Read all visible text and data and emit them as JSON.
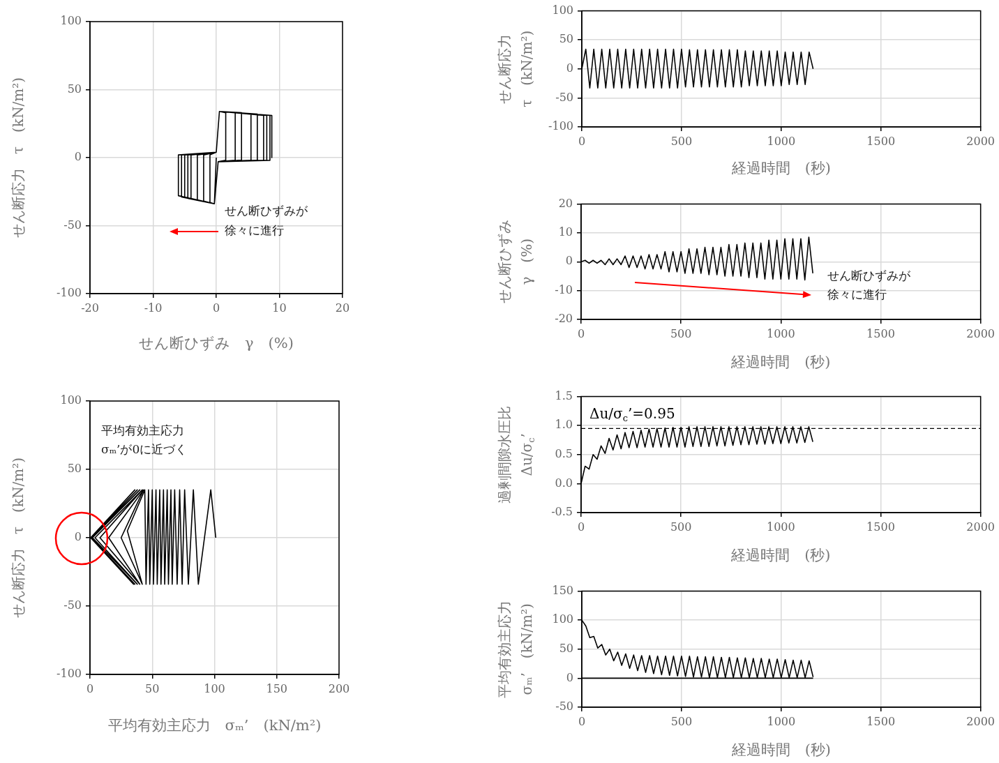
{
  "chart_data": [
    {
      "type": "line",
      "xlabel": "せん断ひずみ　γ　(%)",
      "ylabel": "せん断応力　τ　(kN/m²)",
      "xlim": [
        -20,
        20
      ],
      "ylim": [
        -100,
        100
      ],
      "xticks": [
        -20,
        -10,
        0,
        10,
        20
      ],
      "yticks": [
        -100,
        -50,
        0,
        50,
        100
      ],
      "grid": true,
      "annotations": [
        "せん断ひずみが",
        "徐々に進行"
      ],
      "series": [
        {
          "color": "#000000",
          "x": [
            0,
            -0.3,
            -1,
            -1,
            0,
            0.5,
            1.5,
            1.5,
            0.3,
            -0.3,
            -2,
            -2,
            0,
            0.5,
            3,
            3,
            0.3,
            -0.3,
            -3,
            -3,
            0,
            0.5,
            4,
            4,
            0.3,
            -0.3,
            -4,
            -4,
            0,
            0.5,
            5.5,
            5.5,
            0.3,
            -0.3,
            -4.5,
            -4.5,
            0,
            0.5,
            6.5,
            6.5,
            0.3,
            -0.3,
            -5,
            -5,
            0,
            0.5,
            7.5,
            7.5,
            0.3,
            -0.3,
            -5.5,
            -5.5,
            0,
            0.5,
            8,
            8,
            0.3,
            -0.3,
            -6,
            -6,
            0,
            0.5,
            8.5,
            8.5,
            0.3,
            -0.3,
            -6,
            -6,
            0,
            0.5,
            8.8,
            8.8
          ],
          "values": [
            0,
            -34,
            -33,
            2,
            4,
            34,
            33,
            -2,
            -3,
            -34,
            -32,
            2,
            4,
            34,
            33,
            -2,
            -3,
            -34,
            -31,
            2,
            4,
            34,
            33,
            -2,
            -3,
            -34,
            -30,
            2,
            4,
            34,
            32,
            -2,
            -3,
            -34,
            -30,
            2,
            4,
            34,
            32,
            -2,
            -3,
            -34,
            -29,
            2,
            4,
            34,
            31,
            -2,
            -3,
            -34,
            -29,
            2,
            4,
            34,
            31,
            -2,
            -3,
            -34,
            -28,
            2,
            4,
            34,
            31,
            -2,
            -3,
            -34,
            -28,
            2,
            4,
            34,
            31,
            0
          ]
        }
      ]
    },
    {
      "type": "line",
      "xlabel": "経過時間　(秒)",
      "ylabel": "せん断応力\nτ　(kN/m²)",
      "xlim": [
        0,
        2000
      ],
      "ylim": [
        -100,
        100
      ],
      "xticks": [
        0,
        500,
        1000,
        1500,
        2000
      ],
      "yticks": [
        -100,
        -50,
        0,
        50,
        100
      ],
      "grid": true,
      "x": [
        0,
        20,
        40,
        60,
        80,
        100,
        120,
        140,
        160,
        180,
        200,
        220,
        240,
        260,
        280,
        300,
        320,
        340,
        360,
        380,
        400,
        420,
        440,
        460,
        480,
        500,
        520,
        540,
        560,
        580,
        600,
        620,
        640,
        660,
        680,
        700,
        720,
        740,
        760,
        780,
        800,
        820,
        840,
        860,
        880,
        900,
        920,
        940,
        960,
        980,
        1000,
        1020,
        1040,
        1060,
        1080,
        1100,
        1120,
        1140,
        1160
      ],
      "series": [
        {
          "color": "#000000",
          "values": [
            0,
            34,
            -33,
            34,
            -33,
            34,
            -33,
            34,
            -33,
            34,
            -33,
            34,
            -33,
            34,
            -33,
            34,
            -33,
            34,
            -33,
            34,
            -33,
            34,
            -33,
            34,
            -33,
            34,
            -31,
            33,
            -31,
            33,
            -31,
            33,
            -31,
            33,
            -31,
            33,
            -31,
            33,
            -31,
            33,
            -31,
            31,
            -29,
            31,
            -29,
            31,
            -29,
            31,
            -29,
            31,
            -29,
            29,
            -27,
            29,
            -27,
            29,
            -27,
            29,
            0
          ]
        }
      ]
    },
    {
      "type": "line",
      "xlabel": "経過時間　(秒)",
      "ylabel": "せん断ひずみ\nγ　(%)",
      "xlim": [
        0,
        2000
      ],
      "ylim": [
        -20,
        20
      ],
      "xticks": [
        0,
        500,
        1000,
        1500,
        2000
      ],
      "yticks": [
        -20,
        -10,
        0,
        10,
        20
      ],
      "grid": true,
      "annotations": [
        "せん断ひずみが",
        "徐々に進行"
      ],
      "x": [
        0,
        20,
        40,
        60,
        80,
        100,
        120,
        140,
        160,
        180,
        200,
        220,
        240,
        260,
        280,
        300,
        320,
        340,
        360,
        380,
        400,
        420,
        440,
        460,
        480,
        500,
        520,
        540,
        560,
        580,
        600,
        620,
        640,
        660,
        680,
        700,
        720,
        740,
        760,
        780,
        800,
        820,
        840,
        860,
        880,
        900,
        920,
        940,
        960,
        980,
        1000,
        1020,
        1040,
        1060,
        1080,
        1100,
        1120,
        1140,
        1160
      ],
      "series": [
        {
          "color": "#000000",
          "values": [
            0,
            0.5,
            -0.5,
            0.5,
            -0.5,
            0.5,
            -1,
            1,
            -1,
            1,
            -1,
            2,
            -2,
            2,
            -2,
            2,
            -2.5,
            2.5,
            -2.5,
            2.5,
            -2.5,
            3.5,
            -3.5,
            3.5,
            -3.5,
            3.5,
            -4,
            4.5,
            -4,
            4.5,
            -4,
            5,
            -4.5,
            5,
            -4.5,
            5,
            -5,
            6,
            -5,
            6,
            -5,
            6.5,
            -5.5,
            6.5,
            -5.5,
            6.5,
            -6,
            7.5,
            -6,
            7.5,
            -6,
            8,
            -6,
            8,
            -6,
            8,
            -6.3,
            8.5,
            -4
          ]
        }
      ]
    },
    {
      "type": "line",
      "xlabel": "平均有効主応力　σₘ’　(kN/m²)",
      "ylabel": "せん断応力　τ　(kN/m²)",
      "xlim": [
        0,
        200
      ],
      "ylim": [
        -100,
        100
      ],
      "xticks": [
        0,
        50,
        100,
        150,
        200
      ],
      "yticks": [
        -100,
        -50,
        0,
        50,
        100
      ],
      "grid": true,
      "annotations": [
        "平均有効主応力",
        "σₘ’が0に近づく"
      ],
      "series": [
        {
          "color": "#000000",
          "x": [
            101,
            97,
            87,
            83,
            79,
            76,
            74,
            72,
            70,
            68,
            66,
            65,
            63,
            62,
            60,
            59,
            57,
            56,
            54,
            53,
            51,
            50,
            48,
            47,
            45,
            44,
            30,
            42,
            25,
            43,
            15,
            40,
            8,
            42,
            4,
            38,
            2,
            40,
            1,
            36,
            1,
            38,
            0.5,
            35,
            0.5,
            36,
            0.5
          ],
          "values": [
            0,
            35,
            -34,
            35,
            -34,
            35,
            -34,
            35,
            -34,
            35,
            -34,
            35,
            -34,
            35,
            -34,
            35,
            -34,
            35,
            -34,
            35,
            -34,
            35,
            -34,
            35,
            -34,
            35,
            5,
            -34,
            0,
            35,
            0,
            -34,
            0,
            35,
            0,
            -34,
            0,
            35,
            0,
            -34,
            0,
            35,
            0,
            -34,
            0,
            35,
            0
          ]
        }
      ]
    },
    {
      "type": "line",
      "xlabel": "経過時間　(秒)",
      "ylabel": "過剰間隙水圧比\nΔu/σ$_{c}$’",
      "xlim": [
        0,
        2000
      ],
      "ylim": [
        -0.5,
        1.5
      ],
      "xticks": [
        0,
        500,
        1000,
        1500,
        2000
      ],
      "yticks": [
        -0.5,
        {
          "value": 0,
          "label": "0.0"
        },
        0.5,
        {
          "value": 1,
          "label": "1.0"
        },
        1.5
      ],
      "grid": true,
      "ref_lines": [
        {
          "axis": "y",
          "value": 0.95,
          "label": "Δu/σ$_{c}$’=0.95",
          "line_style": "dashed",
          "color": "#000000"
        }
      ],
      "x": [
        0,
        20,
        40,
        60,
        80,
        100,
        120,
        140,
        160,
        180,
        200,
        220,
        240,
        260,
        280,
        300,
        320,
        340,
        360,
        380,
        400,
        420,
        440,
        460,
        480,
        500,
        520,
        540,
        560,
        580,
        600,
        620,
        640,
        660,
        680,
        700,
        720,
        740,
        760,
        780,
        800,
        820,
        840,
        860,
        880,
        900,
        920,
        940,
        960,
        980,
        1000,
        1020,
        1040,
        1060,
        1080,
        1100,
        1120,
        1140,
        1160
      ],
      "series": [
        {
          "color": "#000000",
          "values": [
            0,
            0.3,
            0.25,
            0.5,
            0.42,
            0.65,
            0.52,
            0.78,
            0.58,
            0.84,
            0.6,
            0.88,
            0.62,
            0.9,
            0.62,
            0.92,
            0.63,
            0.94,
            0.63,
            0.95,
            0.63,
            0.96,
            0.63,
            0.97,
            0.63,
            0.97,
            0.63,
            0.98,
            0.64,
            0.98,
            0.64,
            0.98,
            0.64,
            0.98,
            0.65,
            0.98,
            0.65,
            0.98,
            0.66,
            0.98,
            0.67,
            0.98,
            0.67,
            0.98,
            0.68,
            0.98,
            0.68,
            0.98,
            0.69,
            0.98,
            0.69,
            0.98,
            0.7,
            0.98,
            0.7,
            0.98,
            0.71,
            0.98,
            0.72
          ]
        }
      ]
    },
    {
      "type": "line",
      "xlabel": "経過時間　(秒)",
      "ylabel": "平均有効主応力\nσₘ’　(kN/m²)",
      "xlim": [
        0,
        2000
      ],
      "ylim": [
        -50,
        150
      ],
      "xticks": [
        0,
        500,
        1000,
        1500,
        2000
      ],
      "yticks": [
        -50,
        0,
        50,
        100,
        150
      ],
      "grid": true,
      "x": [
        0,
        20,
        40,
        60,
        80,
        100,
        120,
        140,
        160,
        180,
        200,
        220,
        240,
        260,
        280,
        300,
        320,
        340,
        360,
        380,
        400,
        420,
        440,
        460,
        480,
        500,
        520,
        540,
        560,
        580,
        600,
        620,
        640,
        660,
        680,
        700,
        720,
        740,
        760,
        780,
        800,
        820,
        840,
        860,
        880,
        900,
        920,
        940,
        960,
        980,
        1000,
        1020,
        1040,
        1060,
        1080,
        1100,
        1120,
        1140,
        1160
      ],
      "series": [
        {
          "color": "#000000",
          "values": [
            100,
            90,
            70,
            72,
            52,
            58,
            40,
            50,
            30,
            45,
            22,
            42,
            17,
            40,
            13,
            39,
            10,
            39,
            8,
            38,
            6,
            38,
            5,
            38,
            4,
            38,
            3,
            38,
            2,
            37,
            2,
            37,
            1,
            37,
            1,
            36,
            1,
            36,
            1,
            35,
            1,
            35,
            1,
            34,
            1,
            34,
            1,
            33,
            1,
            33,
            1,
            32,
            1,
            31,
            1,
            31,
            1,
            30,
            2
          ]
        },
        {
          "color": "#000000",
          "x": [
            0,
            1160
          ],
          "values": [
            0,
            0
          ]
        }
      ]
    }
  ]
}
